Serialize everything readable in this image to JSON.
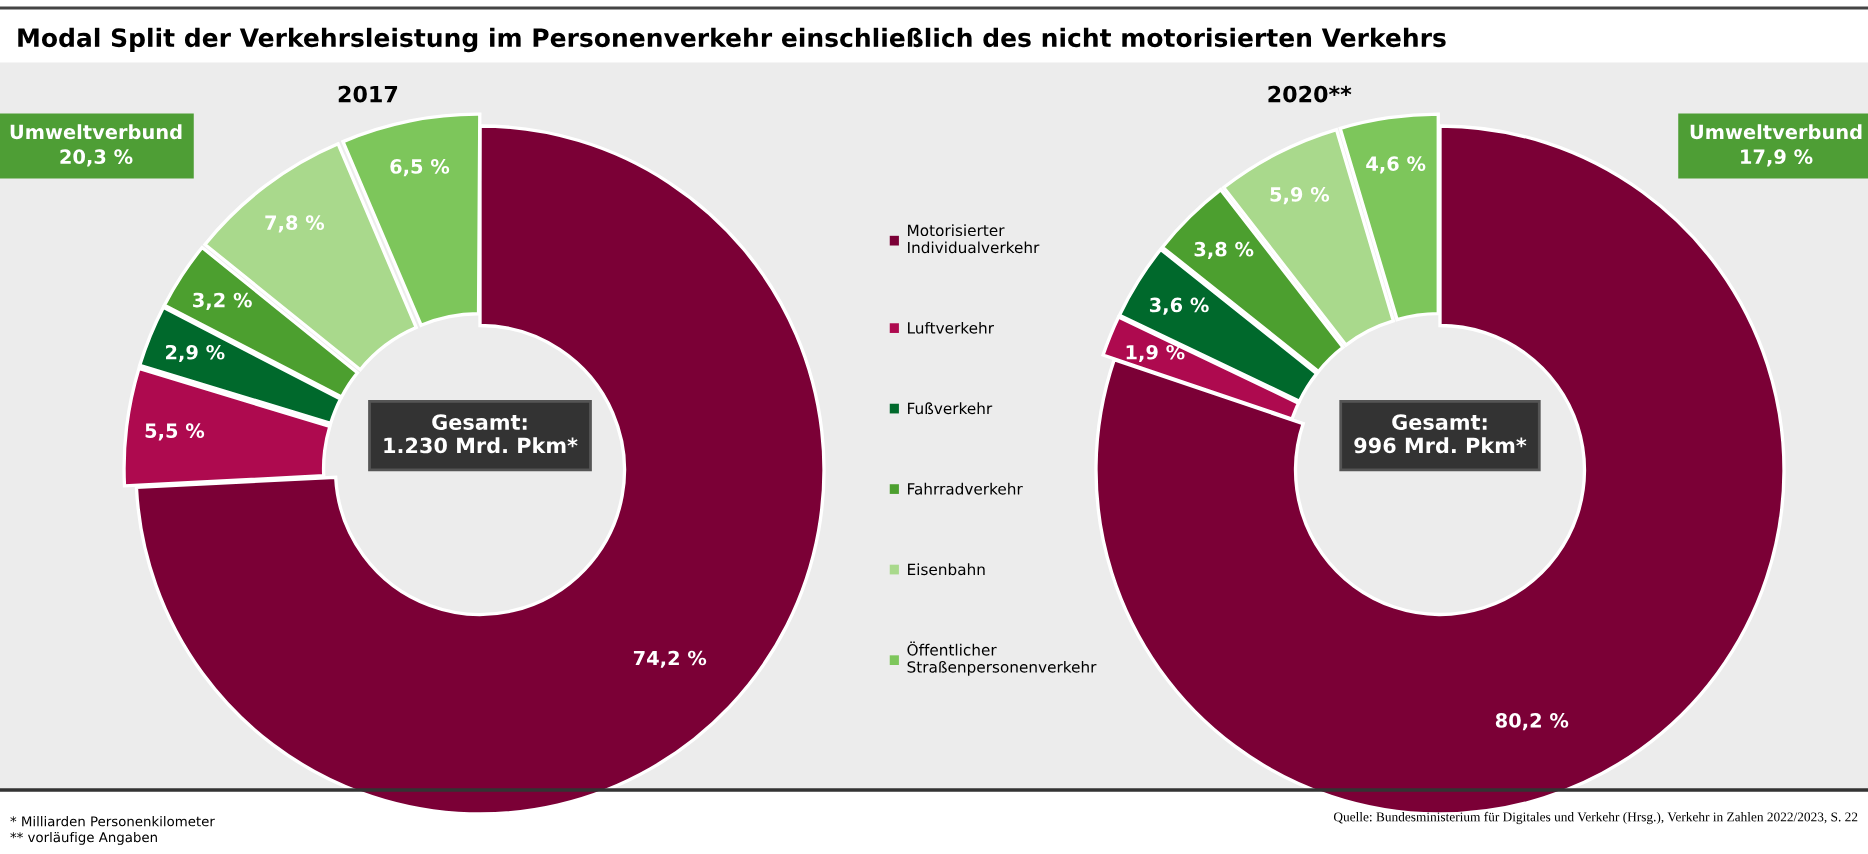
{
  "chart_data": [
    {
      "type": "donut",
      "title": "2017",
      "categories": [
        "Motorisierter Individualverkehr",
        "Luftverkehr",
        "Fußverkehr",
        "Fahrradverkehr",
        "Eisenbahn",
        "Öffentlicher Straßenpersonenverkehr"
      ],
      "values": [
        74.2,
        5.5,
        2.9,
        3.2,
        7.8,
        6.5
      ],
      "colors": [
        "#7b0036",
        "#ae0a4f",
        "#00692c",
        "#4c9f2f",
        "#a9d98c",
        "#7dc65b"
      ],
      "value_labels": [
        "74,2 %",
        "5,5 %",
        "2,9 %",
        "3,2 %",
        "7,8 %",
        "6,5 %"
      ],
      "legend": "right",
      "annotations": [
        "Modal Split der Verkehrsleistung im Personenverkehr einschließlich des nicht motorisierten Verkehrs",
        "Gesamt:\n1.230 Mrd. Pkm*",
        "Umweltverbund\n20,3 %",
        "* Milliarden Personenkilometer\n** vorläufige Angaben"
      ]
    },
    {
      "type": "donut",
      "title": "2020**",
      "categories": [
        null,
        null,
        null,
        null,
        null,
        null
      ],
      "values": [
        80.2,
        1.9,
        3.6,
        3.8,
        5.9,
        4.6
      ],
      "colors": [
        "#7b0036",
        "#ae0a4f",
        "#00692c",
        "#4c9f2f",
        "#a9d98c",
        "#7dc65b"
      ],
      "value_labels": [
        "80,2 %",
        "1,9 %",
        "3,6 %",
        "3,8 %",
        "5,9 %",
        "4,6 %"
      ],
      "annotations": [
        "Gesamt:\n996 Mrd. Pkm*",
        "Umweltverbund\n17,9 %",
        "Quelle: Bundesministerium für Digitales und Verkehr (Hrsg.), Verkehr in Zahlen 2022/2023, S. 22"
      ]
    }
  ]
}
